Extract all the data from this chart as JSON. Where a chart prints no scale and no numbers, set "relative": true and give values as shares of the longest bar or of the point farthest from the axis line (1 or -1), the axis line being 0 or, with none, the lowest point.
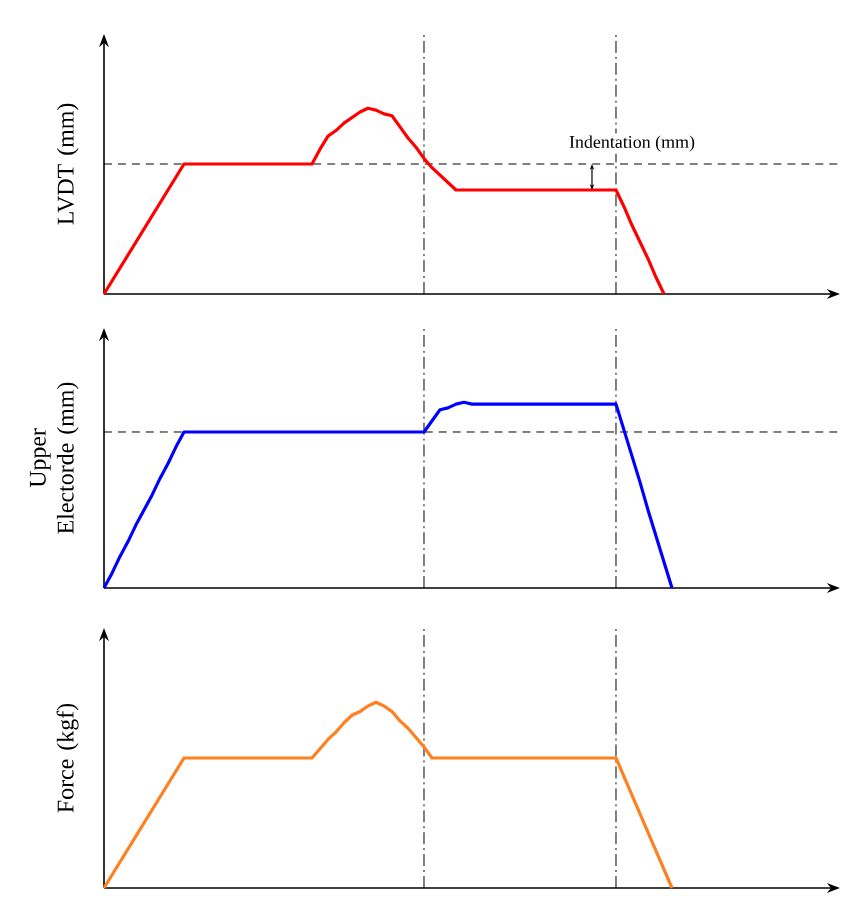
{
  "chart_data": [
    {
      "type": "line",
      "relative": true,
      "ylabel": "LVDT (mm)",
      "tick_labels": false,
      "marker": "none",
      "line_style": "solid",
      "annotations": [
        "Indentation (mm)"
      ],
      "ref_lines": [
        {
          "axis": "y",
          "value": 0.7,
          "line_style": "dashed"
        }
      ],
      "categories": [
        null,
        null,
        null,
        null,
        null,
        null,
        null,
        null,
        null,
        null,
        null,
        null,
        null,
        null,
        null,
        null,
        null,
        null,
        null,
        null,
        null,
        null,
        null,
        null,
        null,
        null,
        null,
        null,
        null,
        null,
        null,
        null,
        null,
        null,
        null,
        null,
        null,
        null,
        null,
        null,
        null,
        null,
        null,
        null,
        null,
        null,
        null,
        null,
        null,
        null,
        null,
        null,
        null,
        null,
        null,
        null,
        null,
        null,
        null,
        null,
        null,
        null,
        null,
        null,
        null,
        null,
        null,
        null,
        null,
        null,
        null
      ],
      "series": [
        {
          "color": "#ff0000",
          "values": [
            0,
            0.07,
            0.14,
            0.21,
            0.28,
            0.35,
            0.42,
            0.49,
            0.56,
            0.63,
            0.7,
            0.7,
            0.7,
            0.7,
            0.7,
            0.7,
            0.7,
            0.7,
            0.7,
            0.7,
            0.7,
            0.7,
            0.7,
            0.7,
            0.7,
            0.7,
            0.7,
            0.78,
            0.85,
            0.88,
            0.92,
            0.95,
            0.98,
            1,
            0.99,
            0.97,
            0.96,
            0.9,
            0.84,
            0.79,
            0.73,
            0.68,
            0.64,
            0.6,
            0.56,
            0.56,
            0.56,
            0.56,
            0.56,
            0.56,
            0.56,
            0.56,
            0.56,
            0.56,
            0.56,
            0.56,
            0.56,
            0.56,
            0.56,
            0.56,
            0.56,
            0.56,
            0.56,
            0.56,
            0.56,
            0.47,
            0.37,
            0.28,
            0.19,
            0.09,
            0
          ]
        }
      ]
    },
    {
      "type": "line",
      "relative": true,
      "ylabel": "Upper Electorde (mm)",
      "tick_labels": false,
      "marker": "none",
      "line_style": "solid",
      "ref_lines": [
        {
          "axis": "y",
          "value": 0.84,
          "line_style": "dashed"
        }
      ],
      "categories": [
        null,
        null,
        null,
        null,
        null,
        null,
        null,
        null,
        null,
        null,
        null,
        null,
        null,
        null,
        null,
        null,
        null,
        null,
        null,
        null,
        null,
        null,
        null,
        null,
        null,
        null,
        null,
        null,
        null,
        null,
        null,
        null,
        null,
        null,
        null,
        null,
        null,
        null,
        null,
        null,
        null,
        null,
        null,
        null,
        null,
        null,
        null,
        null,
        null,
        null,
        null,
        null,
        null,
        null,
        null,
        null,
        null,
        null,
        null,
        null,
        null,
        null,
        null,
        null,
        null,
        null,
        null,
        null,
        null,
        null,
        null,
        null
      ],
      "series": [
        {
          "color": "#0000ff",
          "values": [
            0,
            0.08,
            0.17,
            0.25,
            0.34,
            0.42,
            0.5,
            0.59,
            0.67,
            0.76,
            0.84,
            0.84,
            0.84,
            0.84,
            0.84,
            0.84,
            0.84,
            0.84,
            0.84,
            0.84,
            0.84,
            0.84,
            0.84,
            0.84,
            0.84,
            0.84,
            0.84,
            0.84,
            0.84,
            0.84,
            0.84,
            0.84,
            0.84,
            0.84,
            0.84,
            0.84,
            0.84,
            0.84,
            0.84,
            0.84,
            0.84,
            0.9,
            0.96,
            0.97,
            0.99,
            1,
            0.99,
            0.99,
            0.99,
            0.99,
            0.99,
            0.99,
            0.99,
            0.99,
            0.99,
            0.99,
            0.99,
            0.99,
            0.99,
            0.99,
            0.99,
            0.99,
            0.99,
            0.99,
            0.99,
            0.85,
            0.71,
            0.57,
            0.42,
            0.28,
            0.14,
            0
          ]
        }
      ]
    },
    {
      "type": "line",
      "relative": true,
      "ylabel": "Force (kgf)",
      "tick_labels": false,
      "marker": "none",
      "line_style": "solid",
      "categories": [
        null,
        null,
        null,
        null,
        null,
        null,
        null,
        null,
        null,
        null,
        null,
        null,
        null,
        null,
        null,
        null,
        null,
        null,
        null,
        null,
        null,
        null,
        null,
        null,
        null,
        null,
        null,
        null,
        null,
        null,
        null,
        null,
        null,
        null,
        null,
        null,
        null,
        null,
        null,
        null,
        null,
        null,
        null,
        null,
        null,
        null,
        null,
        null,
        null,
        null,
        null,
        null,
        null,
        null,
        null,
        null,
        null,
        null,
        null,
        null,
        null,
        null,
        null,
        null,
        null,
        null,
        null,
        null,
        null,
        null,
        null,
        null
      ],
      "series": [
        {
          "color": "#ff8020",
          "values": [
            0,
            0.07,
            0.14,
            0.21,
            0.28,
            0.35,
            0.42,
            0.49,
            0.56,
            0.63,
            0.7,
            0.7,
            0.7,
            0.7,
            0.7,
            0.7,
            0.7,
            0.7,
            0.7,
            0.7,
            0.7,
            0.7,
            0.7,
            0.7,
            0.7,
            0.7,
            0.7,
            0.75,
            0.8,
            0.84,
            0.89,
            0.93,
            0.95,
            0.98,
            1,
            0.98,
            0.95,
            0.9,
            0.86,
            0.81,
            0.76,
            0.7,
            0.7,
            0.7,
            0.7,
            0.7,
            0.7,
            0.7,
            0.7,
            0.7,
            0.7,
            0.7,
            0.7,
            0.7,
            0.7,
            0.7,
            0.7,
            0.7,
            0.7,
            0.7,
            0.7,
            0.7,
            0.7,
            0.7,
            0.7,
            0.6,
            0.5,
            0.4,
            0.3,
            0.2,
            0.1,
            0
          ]
        }
      ]
    }
  ]
}
